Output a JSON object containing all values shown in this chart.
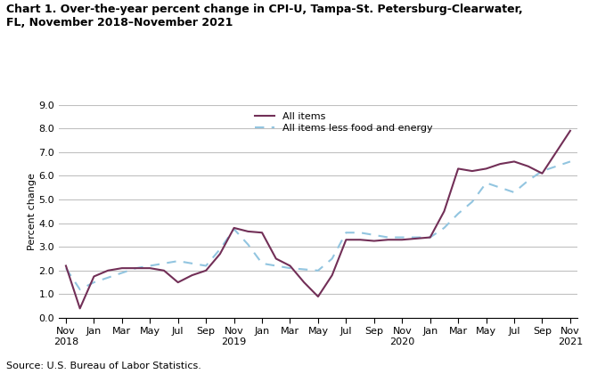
{
  "title": "Chart 1. Over-the-year percent change in CPI-U, Tampa-St. Petersburg-Clearwater,\nFL, November 2018–November 2021",
  "ylabel": "Percent change",
  "source": "Source: U.S. Bureau of Labor Statistics.",
  "ylim": [
    0.0,
    9.0
  ],
  "yticks": [
    0.0,
    1.0,
    2.0,
    3.0,
    4.0,
    5.0,
    6.0,
    7.0,
    8.0,
    9.0
  ],
  "all_items_monthly": [
    2.2,
    0.4,
    1.75,
    2.0,
    2.1,
    2.1,
    2.1,
    2.0,
    1.5,
    1.8,
    2.0,
    2.7,
    3.8,
    3.65,
    3.6,
    2.5,
    2.2,
    1.5,
    0.9,
    1.8,
    3.3,
    3.3,
    3.25,
    3.3,
    3.3,
    3.35,
    3.4,
    4.5,
    6.3,
    6.2,
    6.3,
    6.5,
    6.6,
    6.4,
    6.1,
    7.0,
    7.9
  ],
  "all_items_less_monthly": [
    2.1,
    1.2,
    1.5,
    1.7,
    1.9,
    2.1,
    2.2,
    2.3,
    2.4,
    2.3,
    2.2,
    2.9,
    3.75,
    3.1,
    2.3,
    2.2,
    2.1,
    2.05,
    2.0,
    2.5,
    3.6,
    3.6,
    3.5,
    3.4,
    3.4,
    3.4,
    3.4,
    3.8,
    4.4,
    4.9,
    5.7,
    5.5,
    5.3,
    5.8,
    6.2,
    6.4,
    6.6
  ],
  "tick_positions": [
    0,
    2,
    4,
    6,
    8,
    10,
    12,
    14,
    16,
    18,
    20,
    22,
    24,
    26,
    28,
    30,
    32,
    34,
    36
  ],
  "tick_labels": [
    "Nov\n2018",
    "Jan",
    "Mar",
    "May",
    "Jul",
    "Sep",
    "Nov\n2019",
    "Jan",
    "Mar",
    "May",
    "Jul",
    "Sep",
    "Nov\n2020",
    "Jan",
    "Mar",
    "May",
    "Jul",
    "Sep",
    "Nov\n2021"
  ],
  "all_items_color": "#722F57",
  "all_items_less_color": "#92C5E0",
  "legend_label1": "All items",
  "legend_label2": "All items less food and energy",
  "background_color": "#ffffff",
  "grid_color": "#c0c0c0",
  "title_fontsize": 9,
  "axis_fontsize": 8,
  "source_fontsize": 8
}
